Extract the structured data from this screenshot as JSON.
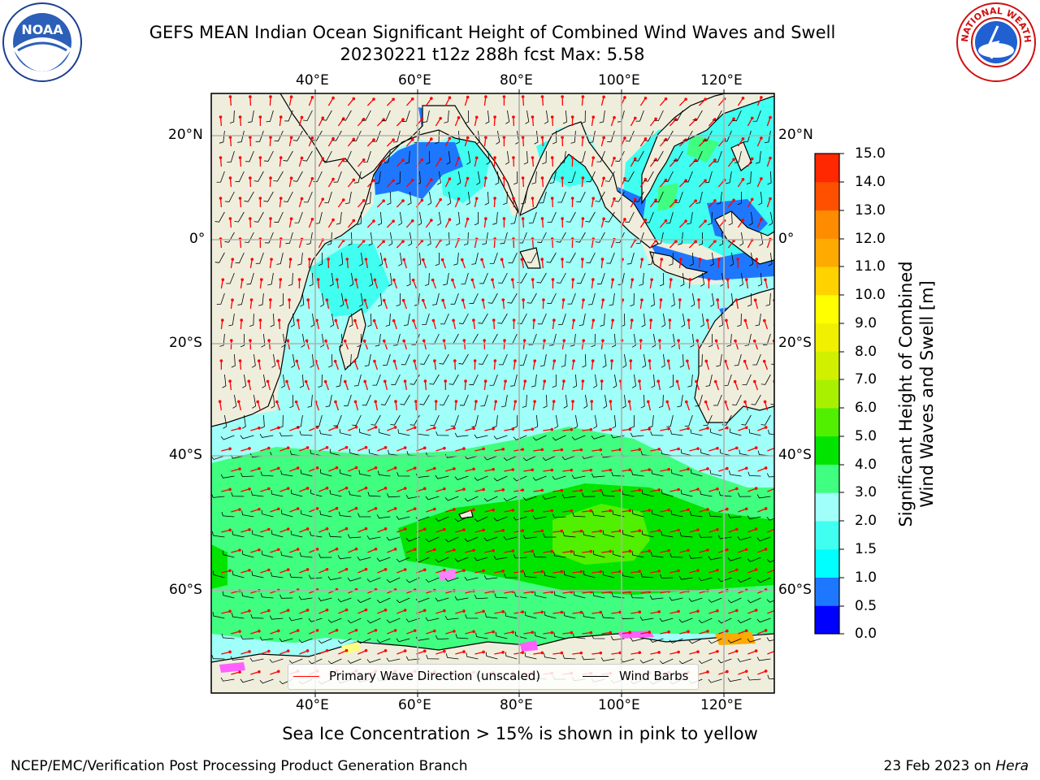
{
  "header": {
    "title_line1": "GEFS MEAN Indian Ocean Significant Height of Combined Wind Waves and Swell",
    "title_line2": "20230221 t12z 288h fcst   Max: 5.58",
    "logo_left_text": "NOAA",
    "logo_right_text": "NATIONAL WEATHER SERVICE"
  },
  "map": {
    "top_lon_labels": [
      "40°E",
      "60°E",
      "80°E",
      "100°E",
      "120°E"
    ],
    "bottom_lon_labels": [
      "40°E",
      "60°E",
      "80°E",
      "100°E",
      "120°E"
    ],
    "left_lat_labels": [
      "20°N",
      "0°",
      "20°S",
      "40°S",
      "60°S"
    ],
    "right_lat_labels": [
      "20°N",
      "0°",
      "20°S",
      "40°S",
      "60°S"
    ],
    "land_color": "#efeedc",
    "grid_color": "#b0b0b0",
    "arrow_color": "#ff0000",
    "barb_color": "#000000"
  },
  "colorbar": {
    "title_line1": "Significant Height of Combined",
    "title_line2": "Wind Waves and Swell [m]",
    "tick_labels": [
      "15.0",
      "14.0",
      "13.0",
      "12.0",
      "11.0",
      "10.0",
      "9.0",
      "8.0",
      "7.0",
      "6.0",
      "5.0",
      "4.0",
      "3.0",
      "2.0",
      "1.5",
      "1.0",
      "0.5",
      "0.0"
    ],
    "colors_bottom_to_top": [
      "#0000ff",
      "#1e78ff",
      "#00ffff",
      "#40fff0",
      "#a0fff8",
      "#40ff80",
      "#00e400",
      "#50f000",
      "#a8f000",
      "#d0f000",
      "#f0f000",
      "#ffff00",
      "#ffd200",
      "#ffaa00",
      "#ff8c00",
      "#ff5000",
      "#ff2800"
    ]
  },
  "legend": {
    "wave_label": "Primary Wave Direction (unscaled)",
    "barb_label": "Wind Barbs"
  },
  "notes": {
    "sea_ice": "Sea Ice Concentration > 15% is shown in pink to yellow",
    "footer_left": "NCEP/EMC/Verification Post Processing Product Generation Branch",
    "footer_right_date": "23 Feb 2023 on ",
    "footer_right_machine": "Hera"
  }
}
